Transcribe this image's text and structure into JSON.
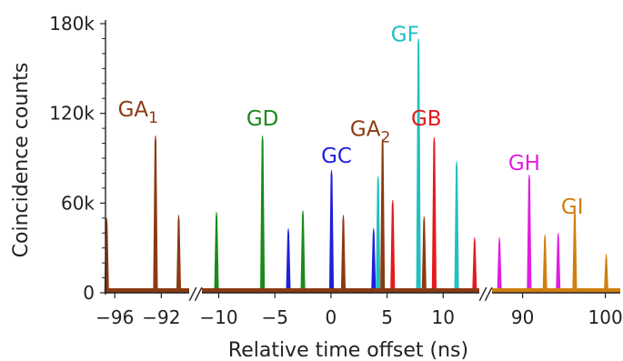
{
  "chart_data": {
    "type": "line",
    "xlabel": "Relative time offset (ns)",
    "ylabel": "Coincidence counts",
    "ylim": [
      0,
      180000
    ],
    "yticks": [
      0,
      60000,
      120000,
      180000
    ],
    "ytick_labels": [
      "0",
      "60k",
      "120k",
      "180k"
    ],
    "axis_breaks": [
      "//",
      "//"
    ],
    "segments": [
      {
        "xlim": [
          -96.8,
          -89.6
        ],
        "ticks": [
          -96,
          -92
        ],
        "tick_labels": [
          "−96",
          "−92"
        ]
      },
      {
        "xlim": [
          -11.5,
          13.3
        ],
        "ticks": [
          -10,
          -5,
          0,
          5,
          10
        ],
        "tick_labels": [
          "−10",
          "−5",
          "0",
          "5",
          "10"
        ]
      },
      {
        "xlim": [
          86.2,
          101.8
        ],
        "ticks": [
          90,
          100
        ],
        "tick_labels": [
          "90",
          "100"
        ]
      }
    ],
    "colors": {
      "GA": "#8b3a12",
      "GB": "#e41a1c",
      "GC": "#1f1fdd",
      "GD": "#1a8a1a",
      "GF": "#22c0c0",
      "GH": "#e01ee0",
      "GI": "#d07f10"
    },
    "peaks": [
      {
        "series": "GA",
        "x": -96.7,
        "y": 50000
      },
      {
        "series": "GA",
        "x": -92.5,
        "y": 105000
      },
      {
        "series": "GA",
        "x": -90.5,
        "y": 52000
      },
      {
        "series": "GD",
        "x": -10.2,
        "y": 54000
      },
      {
        "series": "GD",
        "x": -6.1,
        "y": 105000
      },
      {
        "series": "GD",
        "x": -2.5,
        "y": 55000
      },
      {
        "series": "GC",
        "x": -3.8,
        "y": 43000
      },
      {
        "series": "GC",
        "x": 0.05,
        "y": 82000
      },
      {
        "series": "GC",
        "x": 3.8,
        "y": 43000
      },
      {
        "series": "GA",
        "x": 1.1,
        "y": 52000
      },
      {
        "series": "GA",
        "x": 4.6,
        "y": 103000
      },
      {
        "series": "GB",
        "x": 5.5,
        "y": 62000
      },
      {
        "series": "GF",
        "x": 4.2,
        "y": 78000
      },
      {
        "series": "GF",
        "x": 7.8,
        "y": 170000
      },
      {
        "series": "GF",
        "x": 11.2,
        "y": 88000
      },
      {
        "series": "GA",
        "x": 8.3,
        "y": 51000
      },
      {
        "series": "GB",
        "x": 9.2,
        "y": 104000
      },
      {
        "series": "GB",
        "x": 12.8,
        "y": 37000
      },
      {
        "series": "GH",
        "x": 87.2,
        "y": 37000
      },
      {
        "series": "GH",
        "x": 90.8,
        "y": 79000
      },
      {
        "series": "GH",
        "x": 94.3,
        "y": 40000
      },
      {
        "series": "GI",
        "x": 92.7,
        "y": 39000
      },
      {
        "series": "GI",
        "x": 96.3,
        "y": 56000
      },
      {
        "series": "GI",
        "x": 100.1,
        "y": 26000
      }
    ],
    "labels": [
      {
        "text": "GA",
        "sub": "1",
        "series": "GA",
        "x": -94.0,
        "y": 118000
      },
      {
        "text": "GD",
        "sub": "",
        "series": "GD",
        "x": -6.1,
        "y": 112000
      },
      {
        "text": "GC",
        "sub": "",
        "series": "GC",
        "x": 0.5,
        "y": 87000
      },
      {
        "text": "GA",
        "sub": "2",
        "series": "GA",
        "x": 3.5,
        "y": 105000
      },
      {
        "text": "GF",
        "sub": "",
        "series": "GF",
        "x": 6.6,
        "y": 168000
      },
      {
        "text": "GB",
        "sub": "",
        "series": "GB",
        "x": 8.5,
        "y": 112000
      },
      {
        "text": "GH",
        "sub": "",
        "series": "GH",
        "x": 90.2,
        "y": 82000
      },
      {
        "text": "GI",
        "sub": "",
        "series": "GI",
        "x": 96.0,
        "y": 53000
      }
    ]
  }
}
